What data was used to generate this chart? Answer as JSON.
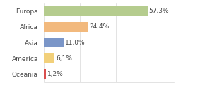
{
  "categories": [
    "Europa",
    "Africa",
    "Asia",
    "America",
    "Oceania"
  ],
  "values": [
    57.3,
    24.4,
    11.0,
    6.1,
    1.2
  ],
  "bar_colors": [
    "#b5cc8e",
    "#f2b97d",
    "#7b96c8",
    "#f2d07a",
    "#d94f4f"
  ],
  "labels": [
    "57,3%",
    "24,4%",
    "11,0%",
    "6,1%",
    "1,2%"
  ],
  "background_color": "#ffffff",
  "xlim": [
    0,
    72
  ],
  "label_fontsize": 6.5,
  "tick_fontsize": 6.5,
  "bar_height": 0.62,
  "grid_color": "#d8d8d8",
  "text_color": "#444444"
}
